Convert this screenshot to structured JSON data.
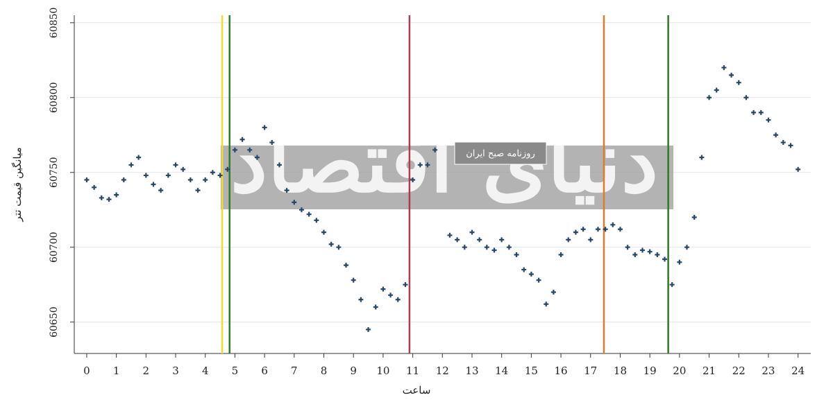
{
  "chart_data": {
    "type": "scatter",
    "y_label": "میانگین قیمت تتر",
    "x_label": "ساعت",
    "watermark": {
      "title": "دنیای اقتصاد",
      "subtitle": "روزنامه صبح ایران"
    },
    "xlim": [
      -0.42,
      24.43
    ],
    "ylim": [
      60629,
      60855
    ],
    "xticks": [
      0,
      1,
      2,
      3,
      4,
      5,
      6,
      7,
      8,
      9,
      10,
      11,
      12,
      13,
      14,
      15,
      16,
      17,
      18,
      19,
      20,
      21,
      22,
      23,
      24
    ],
    "yticks": [
      60650,
      60700,
      60750,
      60800,
      60850
    ],
    "grid": true,
    "color": "#24476b",
    "vlines": [
      {
        "x": 4.57,
        "color": "#f0dc28"
      },
      {
        "x": 4.82,
        "color": "#2f7a22"
      },
      {
        "x": 10.89,
        "color": "#b33a4a"
      },
      {
        "x": 17.45,
        "color": "#e07a2a"
      },
      {
        "x": 19.62,
        "color": "#2f7a22"
      }
    ],
    "x": [
      0,
      0.25,
      0.5,
      0.75,
      1,
      1.25,
      1.5,
      1.75,
      2,
      2.25,
      2.5,
      2.75,
      3,
      3.25,
      3.5,
      3.75,
      4,
      4.25,
      4.5,
      4.75,
      5,
      5.25,
      5.5,
      5.75,
      6,
      6.25,
      6.5,
      6.75,
      7,
      7.25,
      7.5,
      7.75,
      8,
      8.25,
      8.5,
      8.75,
      9,
      9.25,
      9.5,
      9.75,
      10,
      10.25,
      10.5,
      10.75,
      11,
      11.25,
      11.5,
      11.75,
      12.25,
      12.5,
      12.75,
      13,
      13.25,
      13.5,
      13.75,
      14,
      14.25,
      14.5,
      14.75,
      15,
      15.25,
      15.5,
      15.75,
      16,
      16.25,
      16.5,
      16.75,
      17,
      17.25,
      17.5,
      17.75,
      18,
      18.25,
      18.5,
      18.75,
      19,
      19.25,
      19.5,
      19.75,
      20,
      20.25,
      20.5,
      20.75,
      21,
      21.25,
      21.5,
      21.75,
      22,
      22.25,
      22.5,
      22.75,
      23,
      23.25,
      23.5,
      23.75,
      24
    ],
    "values": [
      60745,
      60740,
      60733,
      60732,
      60735,
      60745,
      60755,
      60760,
      60748,
      60742,
      60738,
      60748,
      60755,
      60752,
      60745,
      60738,
      60745,
      60750,
      60748,
      60752,
      60765,
      60772,
      60765,
      60760,
      60780,
      60770,
      60755,
      60738,
      60730,
      60725,
      60722,
      60718,
      60710,
      60702,
      60700,
      60688,
      60678,
      60665,
      60645,
      60660,
      60672,
      60668,
      60665,
      60675,
      60745,
      60755,
      60755,
      60765,
      60708,
      60705,
      60700,
      60710,
      60705,
      60700,
      60698,
      60705,
      60700,
      60695,
      60685,
      60682,
      60678,
      60662,
      60670,
      60695,
      60705,
      60710,
      60712,
      60705,
      60712,
      60712,
      60715,
      60712,
      60700,
      60695,
      60698,
      60697,
      60695,
      60692,
      60675,
      60690,
      60700,
      60720,
      60760,
      60800,
      60805,
      60820,
      60815,
      60810,
      60800,
      60790,
      60790,
      60785,
      60775,
      60770,
      60768,
      60752
    ]
  }
}
